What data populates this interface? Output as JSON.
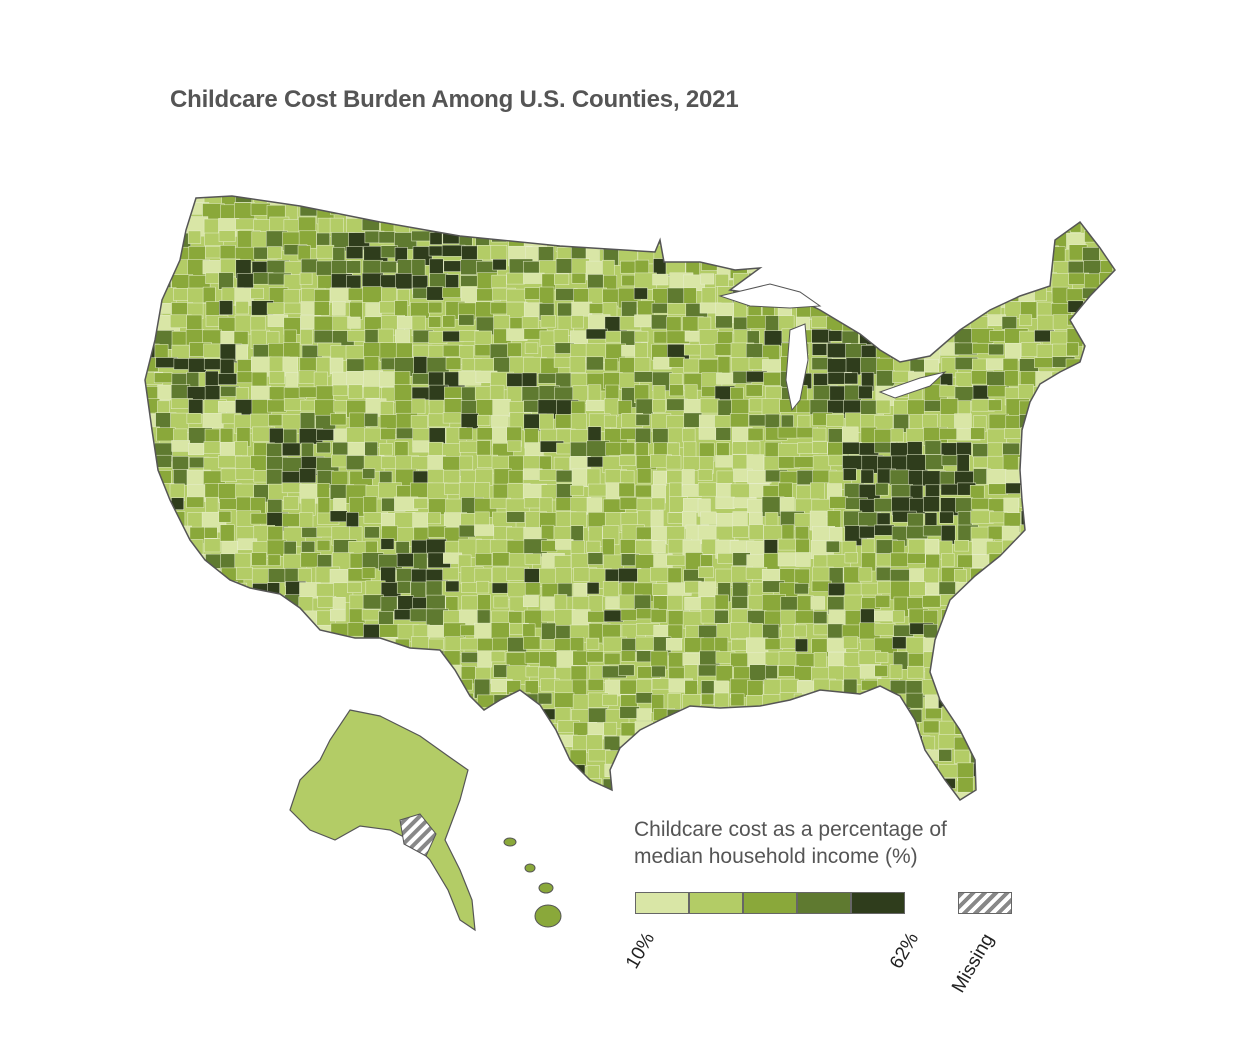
{
  "title": "Childcare Cost Burden Among U.S. Counties, 2021",
  "legend": {
    "title_line1": "Childcare cost as a percentage of",
    "title_line2": "median household income (%)",
    "min_label": "10%",
    "max_label": "62%",
    "missing_label": "Missing",
    "colors": [
      "#d9e6a6",
      "#b3cc66",
      "#8aa83a",
      "#5f7a30",
      "#2f3d1c"
    ],
    "missing_color": "#888888"
  },
  "colors": {
    "outline": "#555555",
    "county_line": "#e8efcf",
    "title_text": "#555555"
  }
}
